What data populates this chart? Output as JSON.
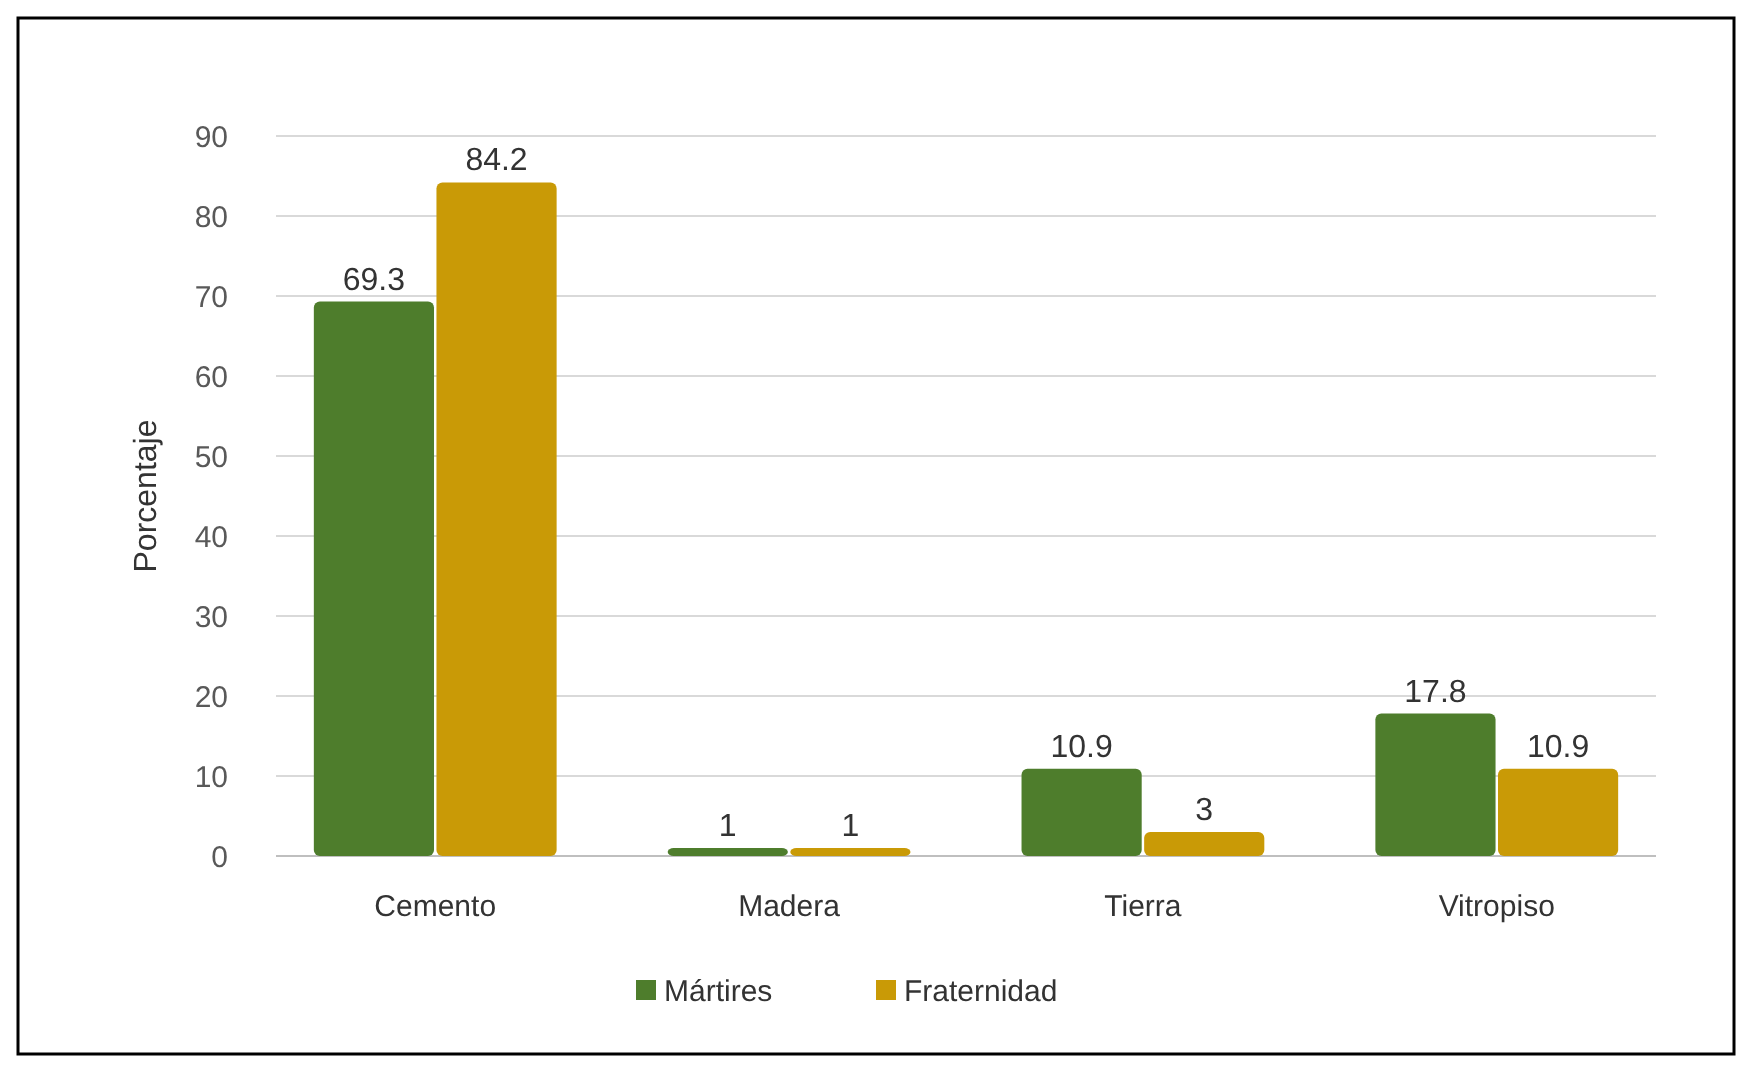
{
  "chart_data": {
    "type": "bar",
    "ylabel": "Porcentaje",
    "categories": [
      "Cemento",
      "Madera",
      "Tierra",
      "Vitropiso"
    ],
    "series": [
      {
        "name": "Mártires",
        "color": "#4e7d2c",
        "values": [
          69.3,
          1,
          10.9,
          17.8
        ]
      },
      {
        "name": "Fraternidad",
        "color": "#c99a06",
        "values": [
          84.2,
          1,
          3,
          10.9
        ]
      }
    ],
    "ylim": [
      0,
      90
    ],
    "yticks": [
      0,
      10,
      20,
      30,
      40,
      50,
      60,
      70,
      80,
      90
    ],
    "grid": "y",
    "legend": "bottom",
    "data_labels": true
  }
}
